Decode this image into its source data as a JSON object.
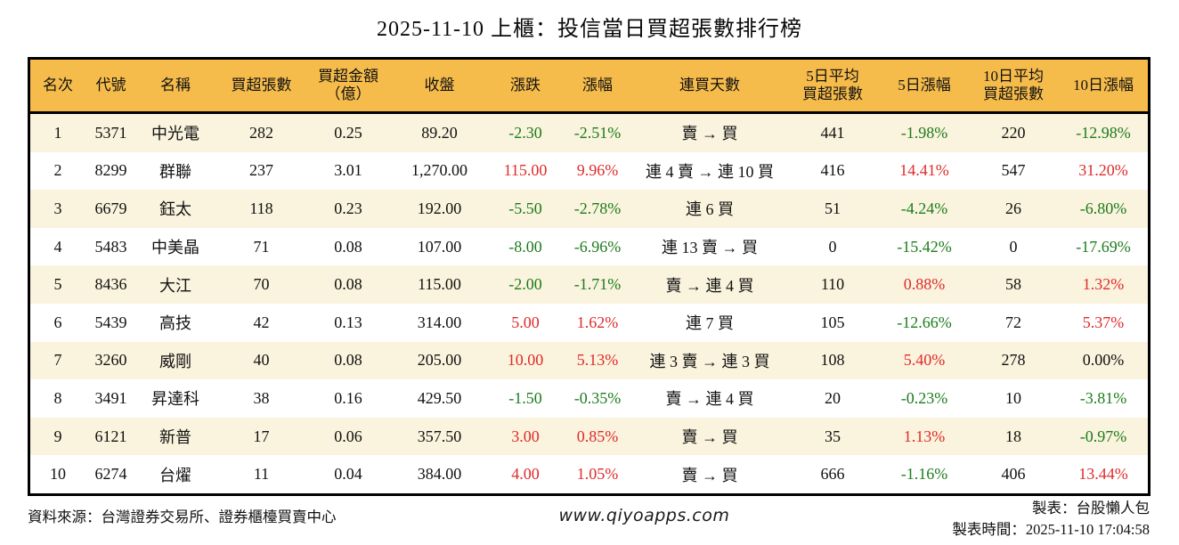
{
  "title": "2025-11-10 上櫃：投信當日買超張數排行榜",
  "colors": {
    "up_red": "#e02b2b",
    "down_green": "#1c7c1c",
    "header_bg": "#f6bc4b",
    "row_alt_bg": "#faf3dd",
    "border": "#000000"
  },
  "table": {
    "columns": [
      {
        "key": "rank",
        "label": "名次"
      },
      {
        "key": "code",
        "label": "代號"
      },
      {
        "key": "name",
        "label": "名稱"
      },
      {
        "key": "net_buy",
        "label": "買超張數"
      },
      {
        "key": "net_amount",
        "label": "買超金額\n（億）"
      },
      {
        "key": "close",
        "label": "收盤"
      },
      {
        "key": "change",
        "label": "漲跌",
        "colorKey": "change_dir"
      },
      {
        "key": "change_pct",
        "label": "漲幅",
        "colorKey": "change_dir"
      },
      {
        "key": "streak",
        "label": "連買天數"
      },
      {
        "key": "avg5",
        "label": "5日平均\n買超張數"
      },
      {
        "key": "pct5",
        "label": "5日漲幅",
        "colorKey": "pct5_dir"
      },
      {
        "key": "avg10",
        "label": "10日平均\n買超張數"
      },
      {
        "key": "pct10",
        "label": "10日漲幅",
        "colorKey": "pct10_dir"
      }
    ],
    "rows": [
      {
        "rank": "1",
        "code": "5371",
        "name": "中光電",
        "net_buy": "282",
        "net_amount": "0.25",
        "close": "89.20",
        "change": "-2.30",
        "change_pct": "-2.51%",
        "change_dir": "down",
        "streak": "賣 → 買",
        "avg5": "441",
        "pct5": "-1.98%",
        "pct5_dir": "down",
        "avg10": "220",
        "pct10": "-12.98%",
        "pct10_dir": "down"
      },
      {
        "rank": "2",
        "code": "8299",
        "name": "群聯",
        "net_buy": "237",
        "net_amount": "3.01",
        "close": "1,270.00",
        "change": "115.00",
        "change_pct": "9.96%",
        "change_dir": "up",
        "streak": "連 4 賣 → 連 10 買",
        "avg5": "416",
        "pct5": "14.41%",
        "pct5_dir": "up",
        "avg10": "547",
        "pct10": "31.20%",
        "pct10_dir": "up"
      },
      {
        "rank": "3",
        "code": "6679",
        "name": "鈺太",
        "net_buy": "118",
        "net_amount": "0.23",
        "close": "192.00",
        "change": "-5.50",
        "change_pct": "-2.78%",
        "change_dir": "down",
        "streak": "連 6 買",
        "avg5": "51",
        "pct5": "-4.24%",
        "pct5_dir": "down",
        "avg10": "26",
        "pct10": "-6.80%",
        "pct10_dir": "down"
      },
      {
        "rank": "4",
        "code": "5483",
        "name": "中美晶",
        "net_buy": "71",
        "net_amount": "0.08",
        "close": "107.00",
        "change": "-8.00",
        "change_pct": "-6.96%",
        "change_dir": "down",
        "streak": "連 13 賣 → 買",
        "avg5": "0",
        "pct5": "-15.42%",
        "pct5_dir": "down",
        "avg10": "0",
        "pct10": "-17.69%",
        "pct10_dir": "down"
      },
      {
        "rank": "5",
        "code": "8436",
        "name": "大江",
        "net_buy": "70",
        "net_amount": "0.08",
        "close": "115.00",
        "change": "-2.00",
        "change_pct": "-1.71%",
        "change_dir": "down",
        "streak": "賣 → 連 4 買",
        "avg5": "110",
        "pct5": "0.88%",
        "pct5_dir": "up",
        "avg10": "58",
        "pct10": "1.32%",
        "pct10_dir": "up"
      },
      {
        "rank": "6",
        "code": "5439",
        "name": "高技",
        "net_buy": "42",
        "net_amount": "0.13",
        "close": "314.00",
        "change": "5.00",
        "change_pct": "1.62%",
        "change_dir": "up",
        "streak": "連 7 買",
        "avg5": "105",
        "pct5": "-12.66%",
        "pct5_dir": "down",
        "avg10": "72",
        "pct10": "5.37%",
        "pct10_dir": "up"
      },
      {
        "rank": "7",
        "code": "3260",
        "name": "威剛",
        "net_buy": "40",
        "net_amount": "0.08",
        "close": "205.00",
        "change": "10.00",
        "change_pct": "5.13%",
        "change_dir": "up",
        "streak": "連 3 賣 → 連 3 買",
        "avg5": "108",
        "pct5": "5.40%",
        "pct5_dir": "up",
        "avg10": "278",
        "pct10": "0.00%",
        "pct10_dir": "flat"
      },
      {
        "rank": "8",
        "code": "3491",
        "name": "昇達科",
        "net_buy": "38",
        "net_amount": "0.16",
        "close": "429.50",
        "change": "-1.50",
        "change_pct": "-0.35%",
        "change_dir": "down",
        "streak": "賣 → 連 4 買",
        "avg5": "20",
        "pct5": "-0.23%",
        "pct5_dir": "down",
        "avg10": "10",
        "pct10": "-3.81%",
        "pct10_dir": "down"
      },
      {
        "rank": "9",
        "code": "6121",
        "name": "新普",
        "net_buy": "17",
        "net_amount": "0.06",
        "close": "357.50",
        "change": "3.00",
        "change_pct": "0.85%",
        "change_dir": "up",
        "streak": "賣 → 買",
        "avg5": "35",
        "pct5": "1.13%",
        "pct5_dir": "up",
        "avg10": "18",
        "pct10": "-0.97%",
        "pct10_dir": "down"
      },
      {
        "rank": "10",
        "code": "6274",
        "name": "台燿",
        "net_buy": "11",
        "net_amount": "0.04",
        "close": "384.00",
        "change": "4.00",
        "change_pct": "1.05%",
        "change_dir": "up",
        "streak": "賣 → 買",
        "avg5": "666",
        "pct5": "-1.16%",
        "pct5_dir": "down",
        "avg10": "406",
        "pct10": "13.44%",
        "pct10_dir": "up"
      }
    ]
  },
  "footer": {
    "source": "資料來源：台灣證券交易所、證券櫃檯買賣中心",
    "website": "www.qiyoapps.com",
    "made_by": "製表：台股懶人包",
    "made_time": "製表時間：2025-11-10 17:04:58"
  }
}
